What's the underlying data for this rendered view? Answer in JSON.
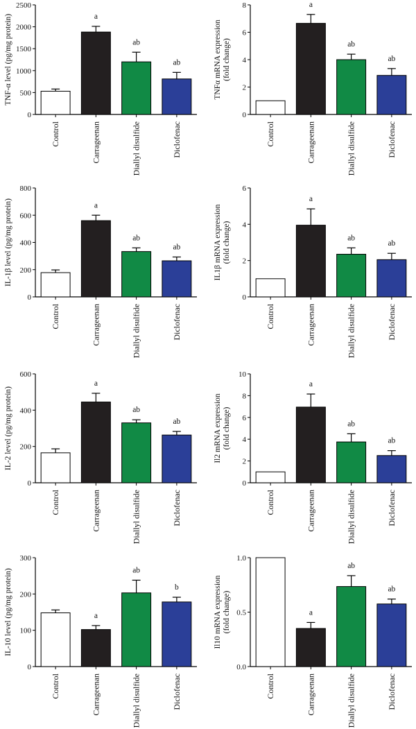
{
  "colors": {
    "Control": "#ffffff",
    "Carrageenan": "#231f20",
    "Diallyl disulfide": "#118a45",
    "Diclofenac": "#2b3f98",
    "axis": "#000000"
  },
  "chart_data": [
    {
      "type": "bar",
      "ylabel": [
        "TNF-α level (pg/mg protein)"
      ],
      "categories": [
        "Control",
        "Carrageenan",
        "Diallyl disulfide",
        "Diclofenac"
      ],
      "values": [
        530,
        1880,
        1200,
        810
      ],
      "errors": [
        50,
        130,
        220,
        150
      ],
      "letters": [
        "",
        "a",
        "ab",
        "ab"
      ],
      "ylim": [
        0,
        2500
      ],
      "yticks": [
        0,
        500,
        1000,
        1500,
        2000,
        2500
      ],
      "ytick_labels": [
        "0",
        "500",
        "1000",
        "1500",
        "2000",
        "2500"
      ]
    },
    {
      "type": "bar",
      "ylabel": [
        "TNFα mRNA expression",
        "(fold change)"
      ],
      "categories": [
        "Control",
        "Carrageenan",
        "Diallyl disulfide",
        "Diclofenac"
      ],
      "values": [
        1.0,
        6.65,
        4.0,
        2.85
      ],
      "errors": [
        0,
        0.65,
        0.4,
        0.5
      ],
      "letters": [
        "",
        "a",
        "ab",
        "ab"
      ],
      "ylim": [
        0,
        8
      ],
      "yticks": [
        0,
        2,
        4,
        6,
        8
      ],
      "ytick_labels": [
        "0",
        "2",
        "4",
        "6",
        "8"
      ]
    },
    {
      "type": "bar",
      "ylabel": [
        "IL-1β level (pg/mg protein)"
      ],
      "categories": [
        "Control",
        "Carrageenan",
        "Diallyl disulfide",
        "Diclofenac"
      ],
      "values": [
        178,
        560,
        333,
        265
      ],
      "errors": [
        20,
        40,
        27,
        28
      ],
      "letters": [
        "",
        "a",
        "ab",
        "ab"
      ],
      "ylim": [
        0,
        800
      ],
      "yticks": [
        0,
        200,
        400,
        600,
        800
      ],
      "ytick_labels": [
        "0",
        "200",
        "400",
        "600",
        "800"
      ]
    },
    {
      "type": "bar",
      "ylabel": [
        "IL1β mRNA expression",
        "(fold change)"
      ],
      "categories": [
        "Control",
        "Carrageenan",
        "Diallyl disulfide",
        "Diclofenac"
      ],
      "values": [
        1.0,
        3.95,
        2.35,
        2.05
      ],
      "errors": [
        0,
        0.9,
        0.35,
        0.35
      ],
      "letters": [
        "",
        "a",
        "ab",
        "ab"
      ],
      "ylim": [
        0,
        6
      ],
      "yticks": [
        0,
        2,
        4,
        6
      ],
      "ytick_labels": [
        "0",
        "2",
        "4",
        "6"
      ]
    },
    {
      "type": "bar",
      "ylabel": [
        "IL-2 level (pg/mg protein)"
      ],
      "categories": [
        "Control",
        "Carrageenan",
        "Diallyl disulfide",
        "Diclofenac"
      ],
      "values": [
        165,
        445,
        330,
        263
      ],
      "errors": [
        22,
        48,
        17,
        20
      ],
      "letters": [
        "",
        "a",
        "ab",
        "ab"
      ],
      "ylim": [
        0,
        600
      ],
      "yticks": [
        0,
        200,
        400,
        600
      ],
      "ytick_labels": [
        "0",
        "200",
        "400",
        "600"
      ]
    },
    {
      "type": "bar",
      "ylabel": [
        "Il2 mRNA expression",
        "(fold change)"
      ],
      "categories": [
        "Control",
        "Carrageenan",
        "Diallyl disulfide",
        "Diclofenac"
      ],
      "values": [
        1.0,
        6.95,
        3.75,
        2.5
      ],
      "errors": [
        0,
        1.2,
        0.75,
        0.45
      ],
      "letters": [
        "",
        "a",
        "ab",
        "ab"
      ],
      "ylim": [
        0,
        10
      ],
      "yticks": [
        0,
        2,
        4,
        6,
        8,
        10
      ],
      "ytick_labels": [
        "0",
        "2",
        "4",
        "6",
        "8",
        "10"
      ]
    },
    {
      "type": "bar",
      "ylabel": [
        "IL-10 level (pg/mg protein)"
      ],
      "categories": [
        "Control",
        "Carrageenan",
        "Diallyl disulfide",
        "Diclofenac"
      ],
      "values": [
        148,
        102,
        203,
        178
      ],
      "errors": [
        8,
        11,
        35,
        13
      ],
      "letters": [
        "",
        "a",
        "ab",
        "b"
      ],
      "ylim": [
        0,
        300
      ],
      "yticks": [
        0,
        100,
        200,
        300
      ],
      "ytick_labels": [
        "0",
        "100",
        "200",
        "300"
      ]
    },
    {
      "type": "bar",
      "ylabel": [
        "Il10 mRNA expression",
        "(fold change)"
      ],
      "categories": [
        "Control",
        "Carrageenan",
        "Diallyl disulfide",
        "Diclofenac"
      ],
      "values": [
        1.0,
        0.35,
        0.735,
        0.575
      ],
      "errors": [
        0,
        0.055,
        0.1,
        0.045
      ],
      "letters": [
        "",
        "a",
        "ab",
        "ab"
      ],
      "ylim": [
        0,
        1.0
      ],
      "yticks": [
        0,
        0.5,
        1.0
      ],
      "ytick_labels": [
        "0.0",
        "0.5",
        "1.0"
      ]
    }
  ]
}
